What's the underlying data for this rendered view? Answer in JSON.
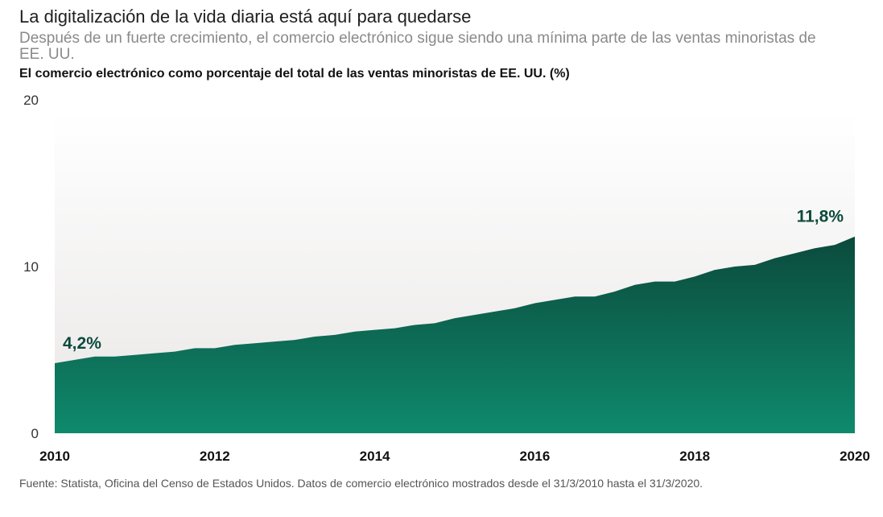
{
  "title": "La digitalización de la vida diaria está aquí para quedarse",
  "subtitle": "Después de un fuerte crecimiento, el comercio electrónico sigue siendo una mínima parte de las ventas minoristas de EE. UU.",
  "chart_caption": "El comercio electrónico como porcentaje del total de las ventas minoristas de EE. UU. (%)",
  "source": "Fuente: Statista, Oficina del Censo de Estados Unidos. Datos de comercio electrónico mostrados desde el 31/3/2010 hasta el 31/3/2020.",
  "colors": {
    "area_top": "#0b4a3c",
    "area_bottom": "#0f8a6c",
    "background_top": "#ffffff",
    "background_bottom": "#e9e7e6",
    "annotation": "#0b4a3c"
  },
  "chart_data": {
    "type": "area",
    "x": [
      2010.0,
      2010.25,
      2010.5,
      2010.75,
      2011.0,
      2011.25,
      2011.5,
      2011.75,
      2012.0,
      2012.25,
      2012.5,
      2012.75,
      2013.0,
      2013.25,
      2013.5,
      2013.75,
      2014.0,
      2014.25,
      2014.5,
      2014.75,
      2015.0,
      2015.25,
      2015.5,
      2015.75,
      2016.0,
      2016.25,
      2016.5,
      2016.75,
      2017.0,
      2017.25,
      2017.5,
      2017.75,
      2018.0,
      2018.25,
      2018.5,
      2018.75,
      2019.0,
      2019.25,
      2019.5,
      2019.75,
      2020.0
    ],
    "values": [
      4.2,
      4.4,
      4.6,
      4.6,
      4.7,
      4.8,
      4.9,
      5.1,
      5.1,
      5.3,
      5.4,
      5.5,
      5.6,
      5.8,
      5.9,
      6.1,
      6.2,
      6.3,
      6.5,
      6.6,
      6.9,
      7.1,
      7.3,
      7.5,
      7.8,
      8.0,
      8.2,
      8.2,
      8.5,
      8.9,
      9.1,
      9.1,
      9.4,
      9.8,
      10.0,
      10.1,
      10.5,
      10.8,
      11.1,
      11.3,
      11.8
    ],
    "xlim": [
      2010,
      2020
    ],
    "ylim": [
      0,
      20
    ],
    "x_ticks": [
      "2010",
      "2012",
      "2014",
      "2016",
      "2018",
      "2020"
    ],
    "y_ticks": [
      "0",
      "10",
      "20"
    ],
    "annotations": [
      {
        "x": 2010.0,
        "y": 4.2,
        "text": "4,2%"
      },
      {
        "x": 2020.0,
        "y": 11.8,
        "text": "11,8%"
      }
    ],
    "grid": false,
    "legend": "none"
  }
}
